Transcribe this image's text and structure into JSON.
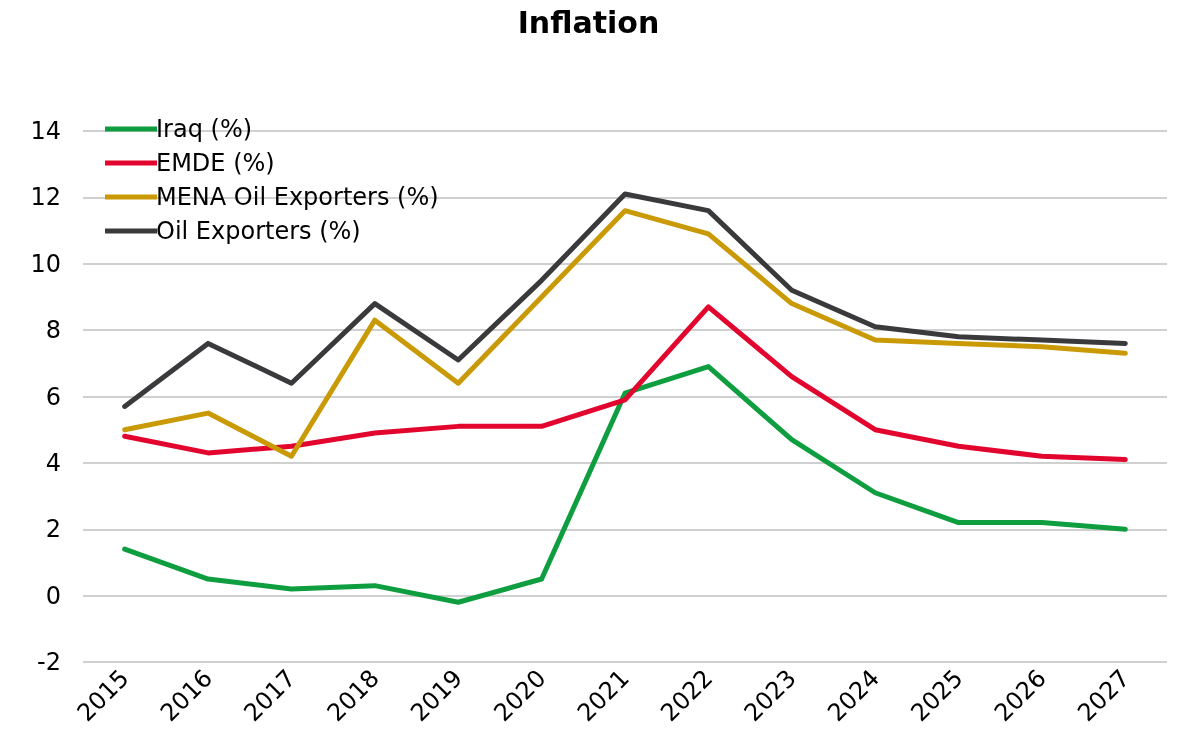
{
  "chart_data": {
    "type": "line",
    "title": "Inflation",
    "categories": [
      "2015",
      "2016",
      "2017",
      "2018",
      "2019",
      "2020",
      "2021",
      "2022",
      "2023",
      "2024",
      "2025",
      "2026",
      "2027"
    ],
    "series": [
      {
        "name": "Iraq (%)",
        "color": "#0e9e40",
        "values": [
          1.4,
          0.5,
          0.2,
          0.3,
          -0.2,
          0.5,
          6.1,
          6.9,
          4.7,
          3.1,
          2.2,
          2.2,
          2.0
        ]
      },
      {
        "name": "EMDE (%)",
        "color": "#e2062f",
        "values": [
          4.8,
          4.3,
          4.5,
          4.9,
          5.1,
          5.1,
          5.9,
          8.7,
          6.6,
          5.0,
          4.5,
          4.2,
          4.1
        ]
      },
      {
        "name": "MENA Oil Exporters (%)",
        "color": "#c99a06",
        "values": [
          5.0,
          5.5,
          4.2,
          8.3,
          6.4,
          9.0,
          11.6,
          10.9,
          8.8,
          7.7,
          7.6,
          7.5,
          7.3
        ]
      },
      {
        "name": "Oil Exporters (%)",
        "color": "#3a3a3c",
        "values": [
          5.7,
          7.6,
          6.4,
          8.8,
          7.1,
          9.5,
          12.1,
          11.6,
          9.2,
          8.1,
          7.8,
          7.7,
          7.6
        ]
      }
    ],
    "ylim": [
      -2,
      14
    ],
    "yticks": [
      -2,
      0,
      2,
      4,
      6,
      8,
      10,
      12,
      14
    ],
    "grid": "y",
    "legend": "top left",
    "marker": "none",
    "line_style": "solid"
  }
}
